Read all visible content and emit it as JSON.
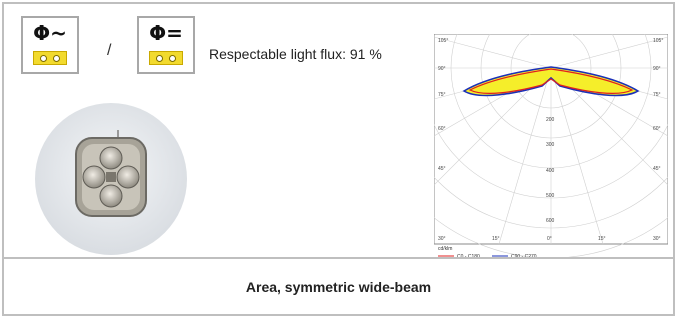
{
  "icons": {
    "ac_symbol": "Φ~",
    "dc_symbol": "Φ=",
    "separator": "/",
    "terminal_color": "#f2da2e"
  },
  "flux_text": "Respectable light flux: 91 %",
  "footer": {
    "title": "Area, symmetric wide-beam"
  },
  "diagram": {
    "angle_labels_top": [
      "105°",
      "90°",
      "75°",
      "60°",
      "45°"
    ],
    "angle_labels_bottom": [
      "30°",
      "15°",
      "0°",
      "15°",
      "30°"
    ],
    "radial_labels": [
      "200",
      "300",
      "400",
      "500",
      "600"
    ],
    "unit": "cd/klm",
    "legend": [
      {
        "label": "C0 - C180",
        "color": "#e02020"
      },
      {
        "label": "C90 - C270",
        "color": "#1a2fb8"
      }
    ],
    "fill_color": "#f5ee2a"
  }
}
